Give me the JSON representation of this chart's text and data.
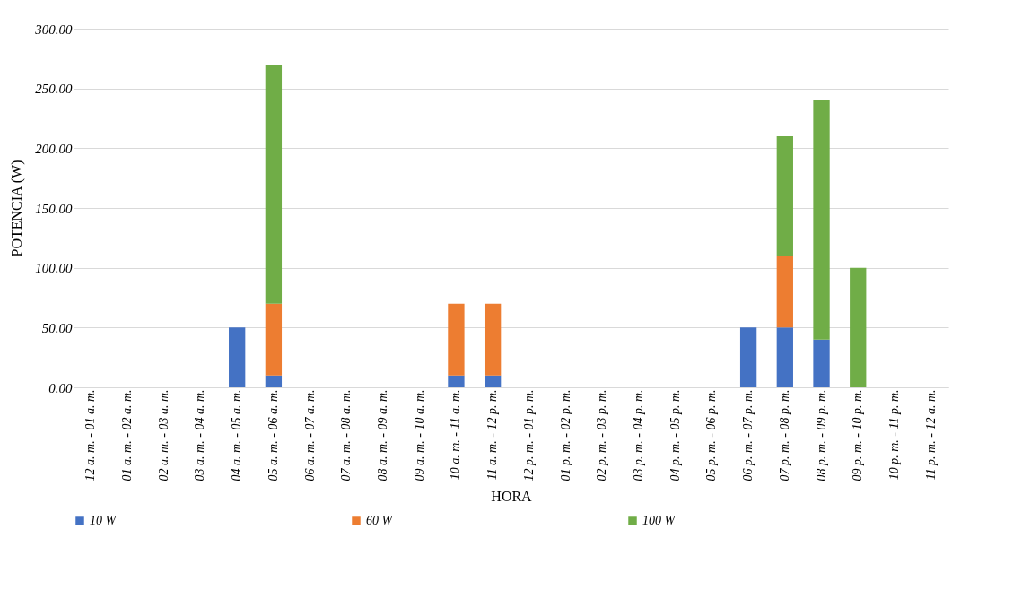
{
  "chart_data": {
    "type": "bar",
    "stacked": true,
    "xlabel": "HORA",
    "ylabel": "POTENCIA (W)",
    "categories": [
      "12 a. m. - 01 a. m.",
      "01 a. m. - 02 a. m.",
      "02 a. m. - 03 a. m.",
      "03 a. m. - 04 a. m.",
      "04 a. m. - 05 a. m.",
      "05 a. m. - 06 a. m.",
      "06 a. m. - 07 a. m.",
      "07 a. m. - 08 a. m.",
      "08 a. m. - 09 a. m.",
      "09 a. m. - 10 a. m.",
      "10 a. m. - 11 a. m.",
      "11 a. m. - 12 p. m.",
      "12 p. m. - 01 p. m.",
      "01 p. m. - 02 p. m.",
      "02 p. m. - 03 p. m.",
      "03 p. m. - 04 p. m.",
      "04 p. m. - 05 p. m.",
      "05 p. m. - 06 p. m.",
      "06 p. m. - 07 p. m.",
      "07 p. m. - 08 p. m.",
      "08 p. m. - 09 p. m.",
      "09 p. m. - 10 p. m.",
      "10 p. m. - 11 p. m.",
      "11 p. m. - 12 a. m."
    ],
    "series": [
      {
        "name": "10 W",
        "color": "#4472c4",
        "values": [
          0,
          0,
          0,
          0,
          50,
          10,
          0,
          0,
          0,
          0,
          10,
          10,
          0,
          0,
          0,
          0,
          0,
          0,
          50,
          50,
          40,
          0,
          0,
          0
        ]
      },
      {
        "name": "60 W",
        "color": "#ed7d31",
        "values": [
          0,
          0,
          0,
          0,
          0,
          60,
          0,
          0,
          0,
          0,
          60,
          60,
          0,
          0,
          0,
          0,
          0,
          0,
          0,
          60,
          0,
          0,
          0,
          0
        ]
      },
      {
        "name": "100 W",
        "color": "#70ad47",
        "values": [
          0,
          0,
          0,
          0,
          0,
          200,
          0,
          0,
          0,
          0,
          0,
          0,
          0,
          0,
          0,
          0,
          0,
          0,
          0,
          100,
          200,
          100,
          0,
          0
        ]
      }
    ],
    "ylim": [
      0,
      300
    ],
    "yticks": [
      {
        "value": 0,
        "label": "0.00"
      },
      {
        "value": 50,
        "label": "50.00"
      },
      {
        "value": 100,
        "label": "100.00"
      },
      {
        "value": 150,
        "label": "150.00"
      },
      {
        "value": 200,
        "label": "200.00"
      },
      {
        "value": 250,
        "label": "250.00"
      },
      {
        "value": 300,
        "label": "300.00"
      }
    ],
    "grid": "y",
    "legend": "bottom"
  }
}
